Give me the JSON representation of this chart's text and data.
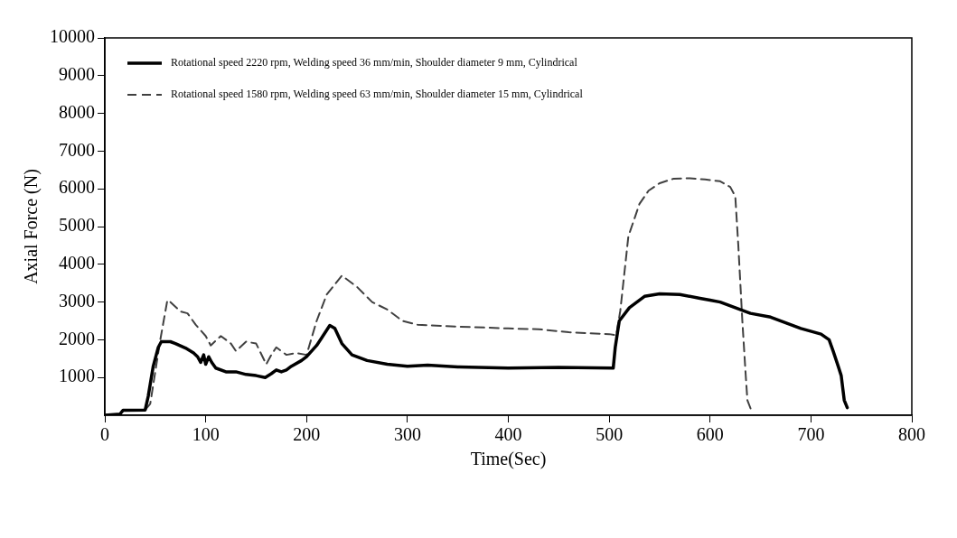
{
  "chart_data": {
    "type": "line",
    "xlabel": "Time(Sec)",
    "ylabel": "Axial Force (N)",
    "xlim": [
      0,
      800
    ],
    "xticks": [
      0,
      100,
      200,
      300,
      400,
      500,
      600,
      700,
      800
    ],
    "ylim": [
      0,
      10000
    ],
    "yticks": [
      1000,
      2000,
      3000,
      4000,
      5000,
      6000,
      7000,
      8000,
      9000,
      10000
    ],
    "grid": false,
    "legend": "top left",
    "marker": "none",
    "series": [
      {
        "name": "Rotational speed 2220 rpm, Welding speed 36 mm/min, Shoulder diameter 9 mm, Cylindrical",
        "color": "#000000",
        "line_style": "solid",
        "x": [
          0,
          15,
          18,
          40,
          43,
          48,
          53,
          56,
          65,
          70,
          80,
          88,
          92,
          95,
          98,
          100,
          103,
          106,
          110,
          120,
          130,
          140,
          150,
          159,
          165,
          170,
          175,
          180,
          185,
          195,
          200,
          210,
          215,
          223,
          228,
          235,
          245,
          260,
          280,
          300,
          320,
          350,
          400,
          450,
          504,
          506,
          510,
          520,
          535,
          550,
          570,
          590,
          600,
          610,
          625,
          640,
          660,
          675,
          690,
          710,
          718,
          722,
          727,
          730,
          733,
          736
        ],
        "values": [
          0,
          30,
          130,
          140,
          500,
          1300,
          1800,
          1950,
          1950,
          1900,
          1780,
          1650,
          1550,
          1400,
          1600,
          1350,
          1550,
          1400,
          1250,
          1150,
          1150,
          1080,
          1050,
          1000,
          1100,
          1200,
          1150,
          1200,
          1300,
          1450,
          1550,
          1850,
          2050,
          2380,
          2300,
          1900,
          1600,
          1450,
          1350,
          1300,
          1330,
          1280,
          1250,
          1270,
          1250,
          1800,
          2500,
          2850,
          3150,
          3220,
          3200,
          3100,
          3050,
          3000,
          2850,
          2700,
          2600,
          2450,
          2300,
          2150,
          2000,
          1700,
          1300,
          1050,
          400,
          200
        ]
      },
      {
        "name": "Rotational speed 1580 rpm, Welding speed 63 mm/min, Shoulder diameter 15 mm, Cylindrical",
        "color": "#404040",
        "line_style": "dashed",
        "x": [
          0,
          15,
          18,
          40,
          45,
          55,
          62,
          65,
          75,
          82,
          90,
          100,
          105,
          115,
          125,
          130,
          140,
          150,
          160,
          165,
          170,
          180,
          190,
          200,
          210,
          220,
          235,
          250,
          265,
          280,
          295,
          310,
          350,
          400,
          430,
          460,
          500,
          507,
          511,
          519,
          530,
          539,
          550,
          564,
          580,
          595,
          610,
          620,
          625,
          628,
          632,
          635,
          637,
          642
        ],
        "values": [
          0,
          30,
          130,
          140,
          300,
          2000,
          3050,
          3000,
          2750,
          2700,
          2400,
          2100,
          1850,
          2100,
          1900,
          1700,
          1950,
          1900,
          1350,
          1600,
          1800,
          1600,
          1650,
          1600,
          2500,
          3200,
          3700,
          3400,
          3000,
          2800,
          2500,
          2400,
          2350,
          2300,
          2280,
          2200,
          2150,
          2120,
          2770,
          4740,
          5600,
          5950,
          6150,
          6270,
          6280,
          6250,
          6200,
          6050,
          5800,
          4500,
          2500,
          1200,
          400,
          50
        ]
      }
    ]
  }
}
